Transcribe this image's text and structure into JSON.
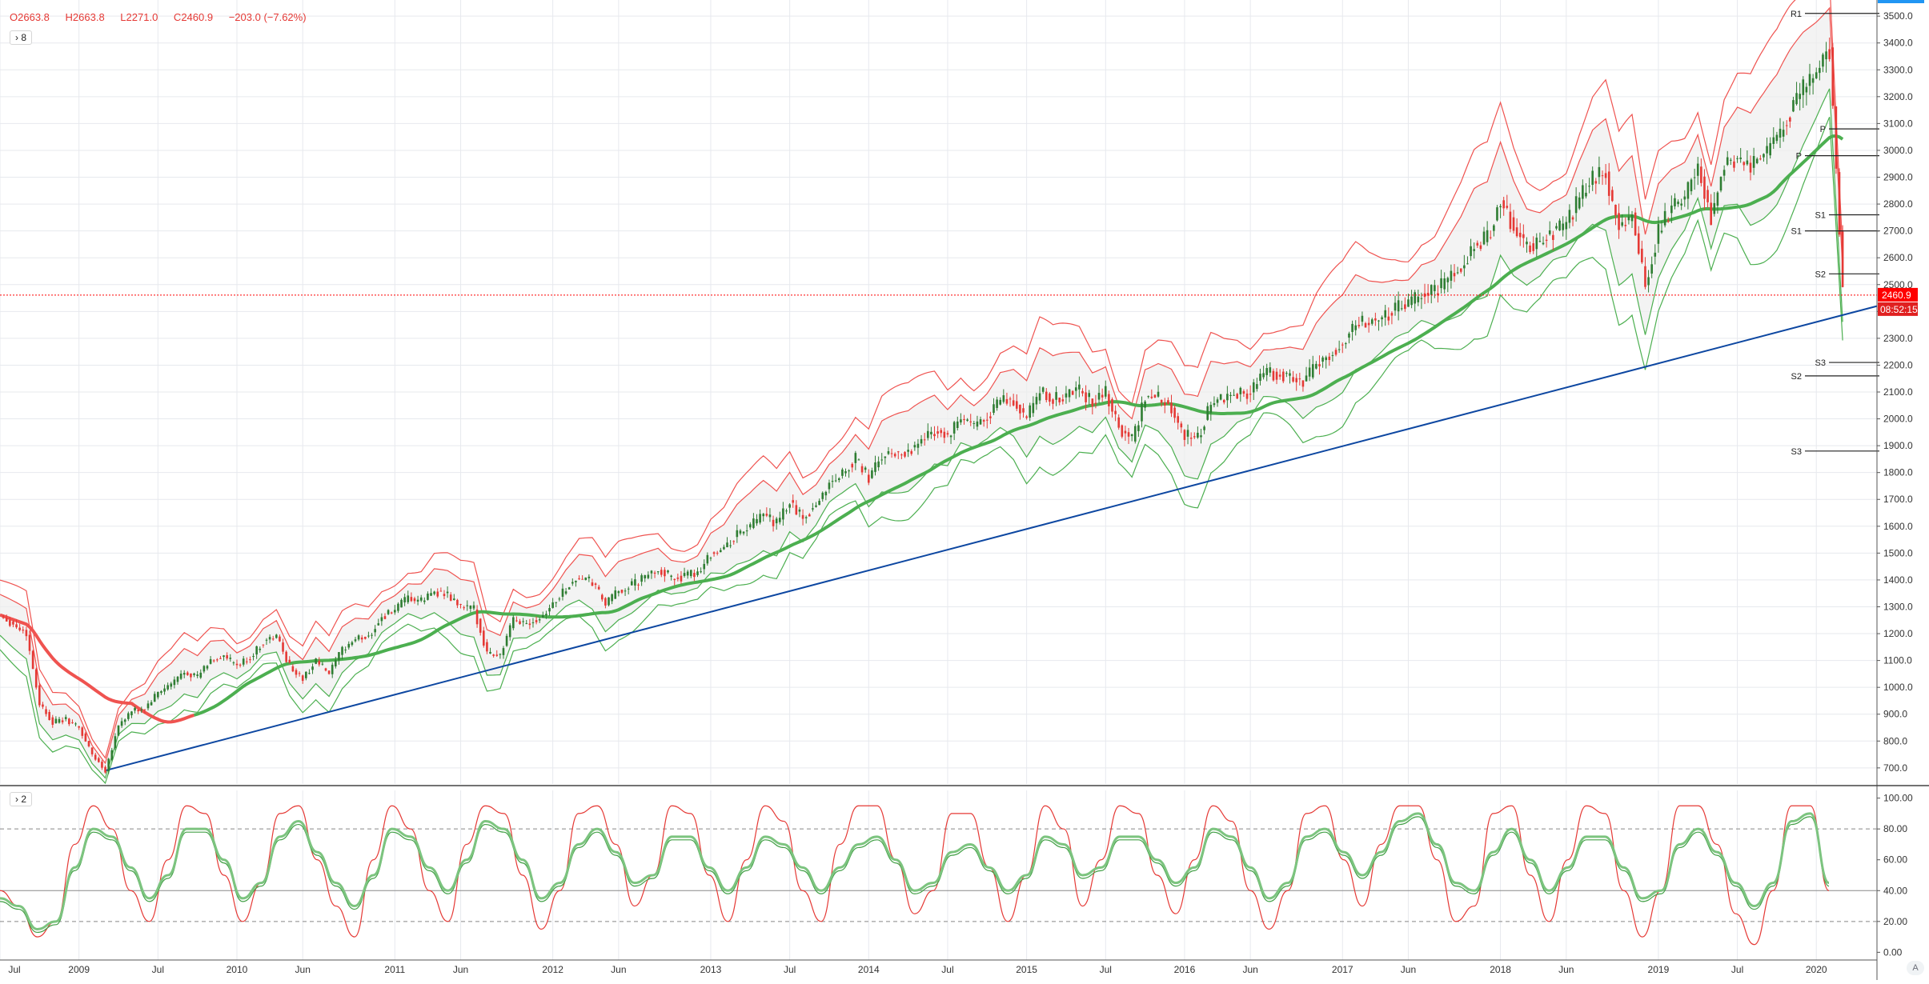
{
  "ohlc": {
    "open_label": "O",
    "open": "2663.8",
    "high_label": "H",
    "high": "2663.8",
    "low_label": "L",
    "low": "2271.0",
    "close_label": "C",
    "close": "2460.9",
    "change": "−203.0 (−7.62%)"
  },
  "panes": {
    "main_indicator_count": "8",
    "osc_indicator_count": "2"
  },
  "price_badge": {
    "price": "2460.9",
    "countdown": "08:52:15"
  },
  "corner_button": "A",
  "colors": {
    "up": "#2e7d32",
    "down": "#e53935",
    "envelope_upper": "#ef5350",
    "envelope_lower": "#4caf50",
    "ma_long": "#4caf50",
    "ma_down": "#ef5350",
    "trendline": "#0d47a1",
    "grid": "#e7e9ee",
    "price_line": "#ff0000",
    "osc_fast": "#e53935",
    "osc_slow": "#43a047"
  },
  "chart_data": [
    {
      "type": "candlestick",
      "title": "",
      "y_axis_ticks": [
        "3500.0",
        "3400.0",
        "3300.0",
        "3200.0",
        "3100.0",
        "3000.0",
        "2900.0",
        "2800.0",
        "2700.0",
        "2600.0",
        "2500.0",
        "2400.0",
        "2300.0",
        "2200.0",
        "2100.0",
        "2000.0",
        "1900.0",
        "1800.0",
        "1700.0",
        "1600.0",
        "1500.0",
        "1400.0",
        "1300.0",
        "1200.0",
        "1100.0",
        "1000.0",
        "900.0",
        "800.0",
        "700.0"
      ],
      "ylim": [
        640,
        3560
      ],
      "x_axis_ticks": [
        "Jul",
        "2009",
        "Jul",
        "2010",
        "Jun",
        "2011",
        "Jun",
        "2012",
        "Jun",
        "2013",
        "Jul",
        "2014",
        "Jul",
        "2015",
        "Jul",
        "2016",
        "Jun",
        "2017",
        "Jun",
        "2018",
        "Jun",
        "2019",
        "Jul",
        "2020"
      ],
      "current_price": 2460.9,
      "price_path": [
        [
          "2008-07",
          1270
        ],
        [
          "2008-09",
          1200
        ],
        [
          "2008-10",
          940
        ],
        [
          "2008-11",
          870
        ],
        [
          "2008-12",
          880
        ],
        [
          "2009-01",
          850
        ],
        [
          "2009-02",
          750
        ],
        [
          "2009-03",
          690
        ],
        [
          "2009-04",
          860
        ],
        [
          "2009-05",
          910
        ],
        [
          "2009-06",
          920
        ],
        [
          "2009-07",
          980
        ],
        [
          "2009-08",
          1010
        ],
        [
          "2009-09",
          1060
        ],
        [
          "2009-10",
          1040
        ],
        [
          "2009-11",
          1100
        ],
        [
          "2009-12",
          1115
        ],
        [
          "2010-01",
          1080
        ],
        [
          "2010-02",
          1110
        ],
        [
          "2010-03",
          1170
        ],
        [
          "2010-04",
          1190
        ],
        [
          "2010-05",
          1080
        ],
        [
          "2010-06",
          1030
        ],
        [
          "2010-07",
          1100
        ],
        [
          "2010-08",
          1050
        ],
        [
          "2010-09",
          1140
        ],
        [
          "2010-10",
          1180
        ],
        [
          "2010-11",
          1190
        ],
        [
          "2010-12",
          1260
        ],
        [
          "2011-01",
          1290
        ],
        [
          "2011-02",
          1330
        ],
        [
          "2011-03",
          1320
        ],
        [
          "2011-04",
          1360
        ],
        [
          "2011-05",
          1340
        ],
        [
          "2011-06",
          1300
        ],
        [
          "2011-07",
          1290
        ],
        [
          "2011-08",
          1130
        ],
        [
          "2011-09",
          1120
        ],
        [
          "2011-10",
          1250
        ],
        [
          "2011-11",
          1240
        ],
        [
          "2011-12",
          1260
        ],
        [
          "2012-01",
          1310
        ],
        [
          "2012-02",
          1370
        ],
        [
          "2012-03",
          1410
        ],
        [
          "2012-04",
          1390
        ],
        [
          "2012-05",
          1310
        ],
        [
          "2012-06",
          1360
        ],
        [
          "2012-07",
          1380
        ],
        [
          "2012-08",
          1410
        ],
        [
          "2012-09",
          1440
        ],
        [
          "2012-10",
          1410
        ],
        [
          "2012-11",
          1410
        ],
        [
          "2012-12",
          1430
        ],
        [
          "2013-01",
          1500
        ],
        [
          "2013-02",
          1515
        ],
        [
          "2013-03",
          1570
        ],
        [
          "2013-04",
          1600
        ],
        [
          "2013-05",
          1640
        ],
        [
          "2013-06",
          1610
        ],
        [
          "2013-07",
          1690
        ],
        [
          "2013-08",
          1630
        ],
        [
          "2013-09",
          1680
        ],
        [
          "2013-10",
          1760
        ],
        [
          "2013-11",
          1800
        ],
        [
          "2013-12",
          1850
        ],
        [
          "2014-01",
          1780
        ],
        [
          "2014-02",
          1860
        ],
        [
          "2014-03",
          1870
        ],
        [
          "2014-04",
          1880
        ],
        [
          "2014-05",
          1920
        ],
        [
          "2014-06",
          1960
        ],
        [
          "2014-07",
          1930
        ],
        [
          "2014-08",
          2000
        ],
        [
          "2014-09",
          1970
        ],
        [
          "2014-10",
          2010
        ],
        [
          "2014-11",
          2070
        ],
        [
          "2014-12",
          2060
        ],
        [
          "2015-01",
          2000
        ],
        [
          "2015-02",
          2100
        ],
        [
          "2015-03",
          2070
        ],
        [
          "2015-04",
          2090
        ],
        [
          "2015-05",
          2110
        ],
        [
          "2015-06",
          2060
        ],
        [
          "2015-07",
          2100
        ],
        [
          "2015-08",
          1970
        ],
        [
          "2015-09",
          1920
        ],
        [
          "2015-10",
          2080
        ],
        [
          "2015-11",
          2080
        ],
        [
          "2015-12",
          2040
        ],
        [
          "2016-01",
          1940
        ],
        [
          "2016-02",
          1930
        ],
        [
          "2016-03",
          2060
        ],
        [
          "2016-04",
          2070
        ],
        [
          "2016-05",
          2100
        ],
        [
          "2016-06",
          2100
        ],
        [
          "2016-07",
          2170
        ],
        [
          "2016-08",
          2170
        ],
        [
          "2016-09",
          2160
        ],
        [
          "2016-10",
          2130
        ],
        [
          "2016-11",
          2200
        ],
        [
          "2016-12",
          2240
        ],
        [
          "2017-01",
          2280
        ],
        [
          "2017-02",
          2360
        ],
        [
          "2017-03",
          2360
        ],
        [
          "2017-04",
          2380
        ],
        [
          "2017-05",
          2410
        ],
        [
          "2017-06",
          2420
        ],
        [
          "2017-07",
          2470
        ],
        [
          "2017-08",
          2470
        ],
        [
          "2017-09",
          2520
        ],
        [
          "2017-10",
          2570
        ],
        [
          "2017-11",
          2650
        ],
        [
          "2017-12",
          2670
        ],
        [
          "2018-01",
          2820
        ],
        [
          "2018-02",
          2710
        ],
        [
          "2018-03",
          2640
        ],
        [
          "2018-04",
          2650
        ],
        [
          "2018-05",
          2700
        ],
        [
          "2018-06",
          2720
        ],
        [
          "2018-07",
          2820
        ],
        [
          "2018-08",
          2900
        ],
        [
          "2018-09",
          2910
        ],
        [
          "2018-10",
          2710
        ],
        [
          "2018-11",
          2760
        ],
        [
          "2018-12",
          2500
        ],
        [
          "2019-01",
          2700
        ],
        [
          "2019-02",
          2780
        ],
        [
          "2019-03",
          2830
        ],
        [
          "2019-04",
          2940
        ],
        [
          "2019-05",
          2750
        ],
        [
          "2019-06",
          2940
        ],
        [
          "2019-07",
          2980
        ],
        [
          "2019-08",
          2930
        ],
        [
          "2019-09",
          2980
        ],
        [
          "2019-10",
          3040
        ],
        [
          "2019-11",
          3140
        ],
        [
          "2019-12",
          3230
        ],
        [
          "2020-01",
          3300
        ],
        [
          "2020-02",
          3380
        ],
        [
          "2020-03",
          2460
        ]
      ],
      "pivot_levels": [
        {
          "label": "R1",
          "value": 3510
        },
        {
          "label": "P",
          "value": 3080
        },
        {
          "label": "P",
          "value": 2980
        },
        {
          "label": "S1",
          "value": 2760
        },
        {
          "label": "S1",
          "value": 2700
        },
        {
          "label": "S2",
          "value": 2540
        },
        {
          "label": "S3",
          "value": 2210
        },
        {
          "label": "S2",
          "value": 2160
        },
        {
          "label": "S3",
          "value": 1880
        }
      ]
    },
    {
      "type": "line",
      "title": "",
      "y_axis_ticks": [
        "100.00",
        "80.00",
        "60.00",
        "40.00",
        "20.00",
        "0.00"
      ],
      "ylim": [
        -5,
        105
      ],
      "reference_lines": [
        80,
        40,
        20
      ],
      "series": [
        {
          "values": [
            40,
            30,
            10,
            20,
            70,
            95,
            80,
            40,
            20,
            60,
            95,
            90,
            50,
            20,
            45,
            90,
            95,
            60,
            30,
            10,
            60,
            95,
            80,
            40,
            20,
            70,
            95,
            90,
            50,
            15,
            40,
            90,
            95,
            70,
            30,
            50,
            95,
            90,
            50,
            20,
            60,
            95,
            85,
            40,
            20,
            70,
            95,
            95,
            60,
            25,
            40,
            90,
            90,
            55,
            20,
            50,
            95,
            80,
            30,
            60,
            95,
            90,
            50,
            25,
            60,
            95,
            85,
            40,
            15,
            40,
            90,
            95,
            60,
            30,
            70,
            95,
            95,
            60,
            20,
            30,
            90,
            95,
            50,
            20,
            60,
            95,
            90,
            40,
            10,
            40,
            95,
            95,
            70,
            25,
            5,
            40,
            95,
            95,
            40
          ]
        },
        {
          "values": [
            35,
            30,
            15,
            20,
            55,
            80,
            75,
            55,
            35,
            50,
            80,
            80,
            60,
            35,
            45,
            75,
            85,
            65,
            45,
            30,
            50,
            80,
            75,
            55,
            40,
            60,
            85,
            80,
            60,
            35,
            45,
            70,
            80,
            65,
            45,
            50,
            75,
            75,
            55,
            40,
            55,
            75,
            70,
            55,
            40,
            55,
            70,
            75,
            60,
            40,
            45,
            65,
            70,
            55,
            40,
            50,
            75,
            70,
            50,
            55,
            75,
            75,
            60,
            45,
            55,
            80,
            75,
            55,
            35,
            45,
            75,
            80,
            65,
            50,
            65,
            85,
            90,
            70,
            45,
            40,
            65,
            80,
            60,
            40,
            55,
            75,
            75,
            55,
            35,
            40,
            70,
            80,
            65,
            45,
            30,
            45,
            85,
            90,
            45
          ]
        }
      ]
    }
  ]
}
